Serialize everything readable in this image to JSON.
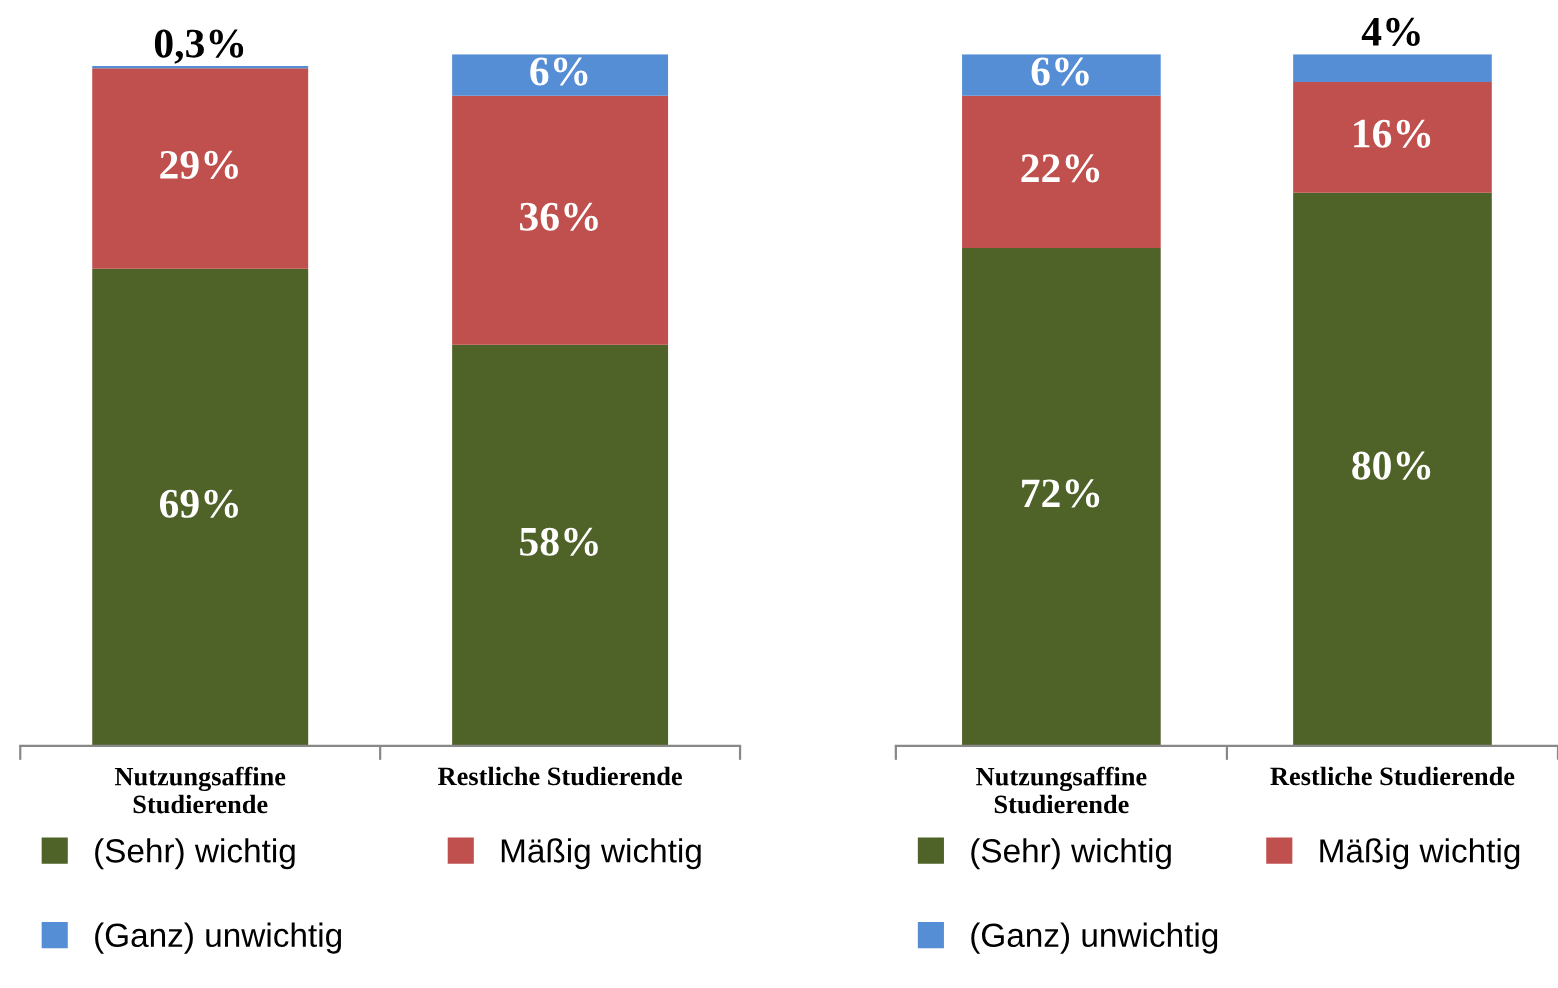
{
  "chart_data": [
    {
      "type": "bar",
      "stacked": true,
      "data_labels": true,
      "legend": "bottom",
      "grid": false,
      "categories": [
        "Nutzungsaffine\nStudierende",
        "Restliche Studierende"
      ],
      "series": [
        {
          "name": "(Sehr) wichtig",
          "color": "#4f6228",
          "values": [
            69,
            58
          ],
          "value_labels": [
            "69%",
            "58%"
          ]
        },
        {
          "name": "Mäßig wichtig",
          "color": "#c0504d",
          "values": [
            29,
            36
          ],
          "value_labels": [
            "29%",
            "36%"
          ]
        },
        {
          "name": "(Ganz) unwichtig",
          "color": "#558ed5",
          "values": [
            0.3,
            6
          ],
          "value_labels": [
            "0,3%",
            "6%"
          ]
        }
      ]
    },
    {
      "type": "bar",
      "stacked": true,
      "data_labels": true,
      "legend": "bottom",
      "grid": false,
      "categories": [
        "Nutzungsaffine\nStudierende",
        "Restliche Studierende"
      ],
      "series": [
        {
          "name": "(Sehr) wichtig",
          "color": "#4f6228",
          "values": [
            72,
            80
          ],
          "value_labels": [
            "72%",
            "80%"
          ]
        },
        {
          "name": "Mäßig wichtig",
          "color": "#c0504d",
          "values": [
            22,
            16
          ],
          "value_labels": [
            "22%",
            "16%"
          ]
        },
        {
          "name": "(Ganz) unwichtig",
          "color": "#558ed5",
          "values": [
            6,
            4
          ],
          "value_labels": [
            "6%",
            "4%"
          ]
        }
      ]
    }
  ]
}
